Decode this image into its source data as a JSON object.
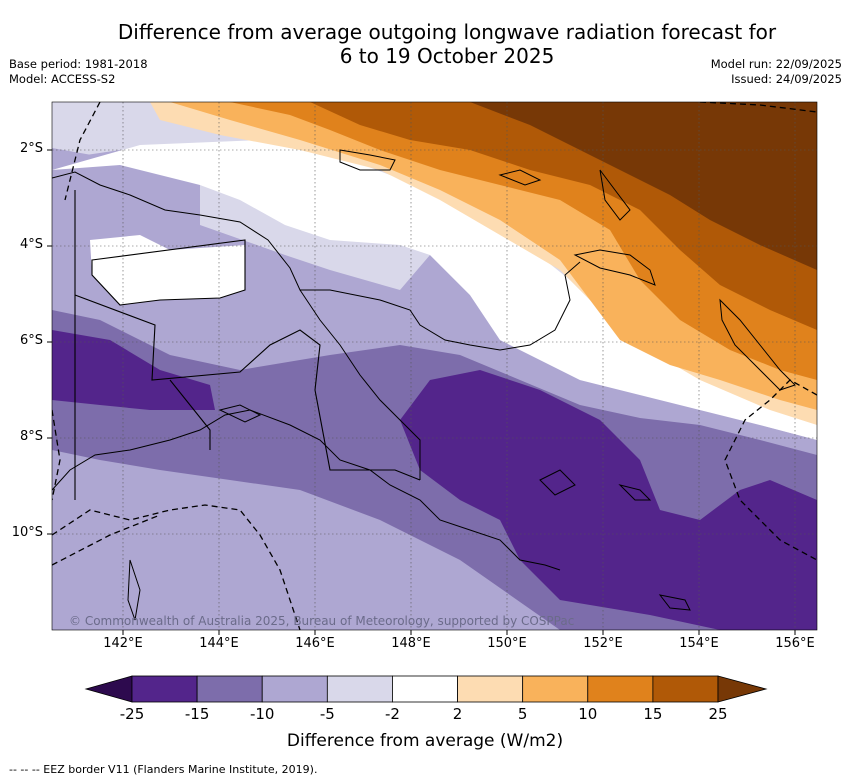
{
  "title": {
    "line1": "Difference from average outgoing longwave radiation forecast for",
    "line2": "6 to 19 October 2025"
  },
  "meta": {
    "base_period": "Base period: 1981-2018",
    "model": "Model: ACCESS-S2",
    "model_run": "Model run: 22/09/2025",
    "issued": "Issued: 24/09/2025"
  },
  "axes": {
    "lat_labels": [
      "2°S",
      "4°S",
      "6°S",
      "8°S",
      "10°S"
    ],
    "lon_labels": [
      "142°E",
      "144°E",
      "146°E",
      "148°E",
      "150°E",
      "152°E",
      "154°E",
      "156°E"
    ]
  },
  "copyright": "© Commonwealth of Australia 2025, Bureau of Meteorology, supported by COSPPac",
  "colorbar": {
    "title": "Difference from average (W/m2)",
    "ticks": [
      "-25",
      "-15",
      "-10",
      "-5",
      "-2",
      "2",
      "5",
      "10",
      "15",
      "25"
    ],
    "colors": [
      "#2d0a4e",
      "#53258b",
      "#7d6dab",
      "#aea7d2",
      "#d9d8ea",
      "#ffffff",
      "#fddcb2",
      "#f9b25b",
      "#e0821c",
      "#b05907",
      "#773806"
    ]
  },
  "footnote": "--  --  -- EEZ border V11 (Flanders Marine Institute, 2019)."
}
